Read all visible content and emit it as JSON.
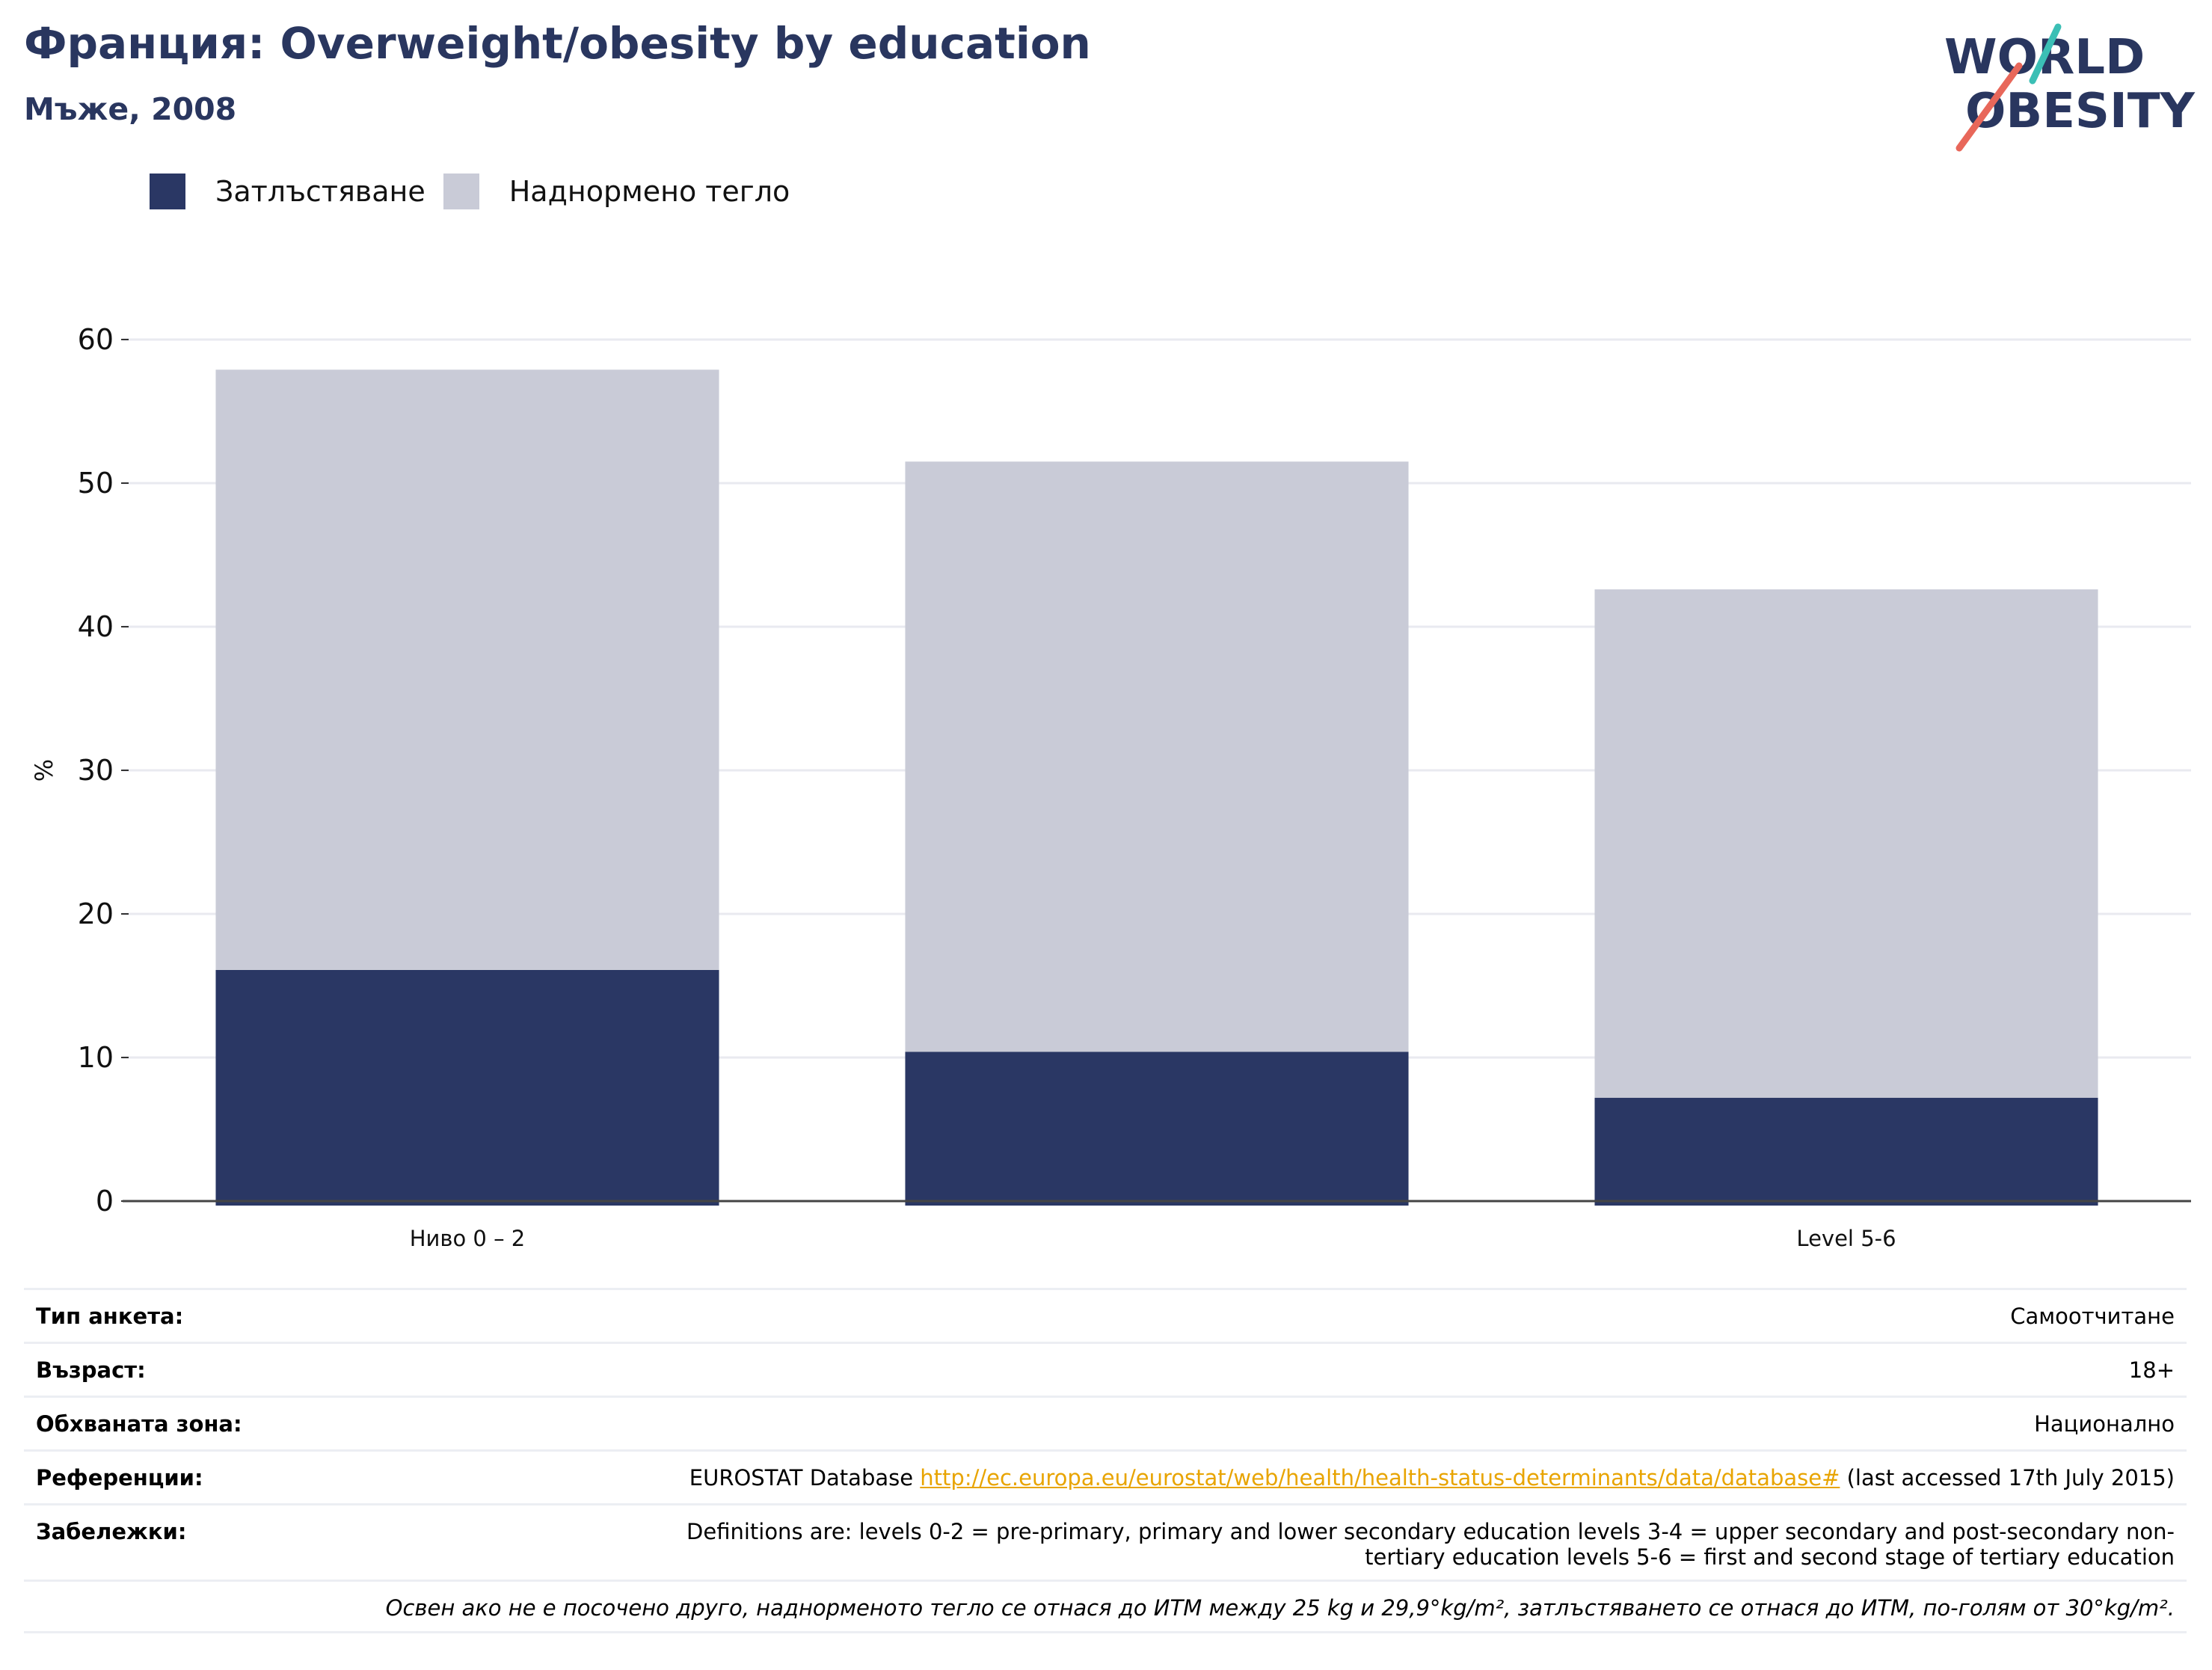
{
  "header": {
    "title": "Франция: Overweight/obesity by education",
    "subtitle": "Мъже, 2008"
  },
  "logo": {
    "line1": "WORLD",
    "line2": "OBESITY",
    "colors": {
      "text": "#29365f",
      "accent_teal": "#3bbfb5",
      "accent_red": "#e8675a"
    }
  },
  "legend": {
    "items": [
      {
        "label": "Затлъстяване",
        "color": "#2a3764"
      },
      {
        "label": "Наднормено тегло",
        "color": "#c9cbd7"
      }
    ]
  },
  "chart_data": {
    "type": "bar",
    "stacked": true,
    "categories": [
      "Ниво 0 – 2",
      "",
      "Level 5-6"
    ],
    "series": [
      {
        "name": "Затлъстяване",
        "values": [
          16.1,
          10.4,
          7.2
        ],
        "color": "#2a3764"
      },
      {
        "name": "Наднормено тегло",
        "values": [
          41.8,
          41.1,
          35.4
        ],
        "color": "#c9cbd7"
      }
    ],
    "totals": [
      57.9,
      51.5,
      42.6
    ],
    "ylabel": "%",
    "xlabel": "",
    "ylim": [
      0,
      60
    ],
    "yticks": [
      0,
      10,
      20,
      30,
      40,
      50,
      60
    ],
    "grid": true,
    "legend_position": "top-left"
  },
  "info": {
    "survey_type_label": "Тип анкета:",
    "survey_type_value": "Самоотчитане",
    "age_label": "Възраст:",
    "age_value": "18+",
    "area_label": "Обхваната зона:",
    "area_value": "Национално",
    "references_label": "Референции:",
    "references_prefix": "EUROSTAT Database",
    "references_link": "http://ec.europa.eu/eurostat/web/health/health-status-determinants/data/database#",
    "references_suffix": "(last accessed 17th July 2015)",
    "notes_label": "Забележки:",
    "notes_value": "Definitions are: levels 0-2 = pre-primary, primary and lower secondary education levels 3-4 = upper secondary and post-secondary non-tertiary education levels 5-6 = first and second stage of tertiary education",
    "footnote": "Освен ако не е посочено друго, наднорменото тегло се отнася до ИТМ между 25 kg и 29,9°kg/m², затлъстяването се отнася до ИТМ, по-голям от 30°kg/m²."
  }
}
